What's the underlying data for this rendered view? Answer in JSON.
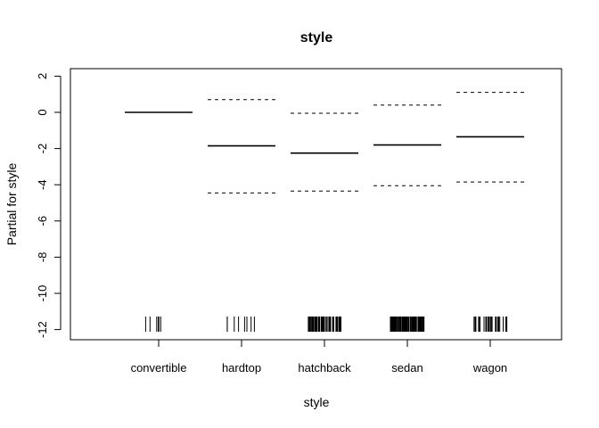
{
  "chart_data": {
    "type": "partial-effect",
    "title": "style",
    "xlabel": "style",
    "ylabel": "Partial for style",
    "ylim": [
      -12.5,
      2.4
    ],
    "yticks": [
      2,
      0,
      -2,
      -4,
      -6,
      -8,
      -10,
      -12
    ],
    "categories": [
      "convertible",
      "hardtop",
      "hatchback",
      "sedan",
      "wagon"
    ],
    "estimate": [
      0,
      -1.85,
      -2.25,
      -1.8,
      -1.35
    ],
    "upper": [
      0,
      0.7,
      -0.05,
      0.4,
      1.1
    ],
    "lower": [
      0,
      -4.45,
      -4.35,
      -4.05,
      -3.85
    ],
    "rug_counts": [
      6,
      8,
      70,
      96,
      25
    ],
    "grid": false,
    "legend": "none"
  }
}
